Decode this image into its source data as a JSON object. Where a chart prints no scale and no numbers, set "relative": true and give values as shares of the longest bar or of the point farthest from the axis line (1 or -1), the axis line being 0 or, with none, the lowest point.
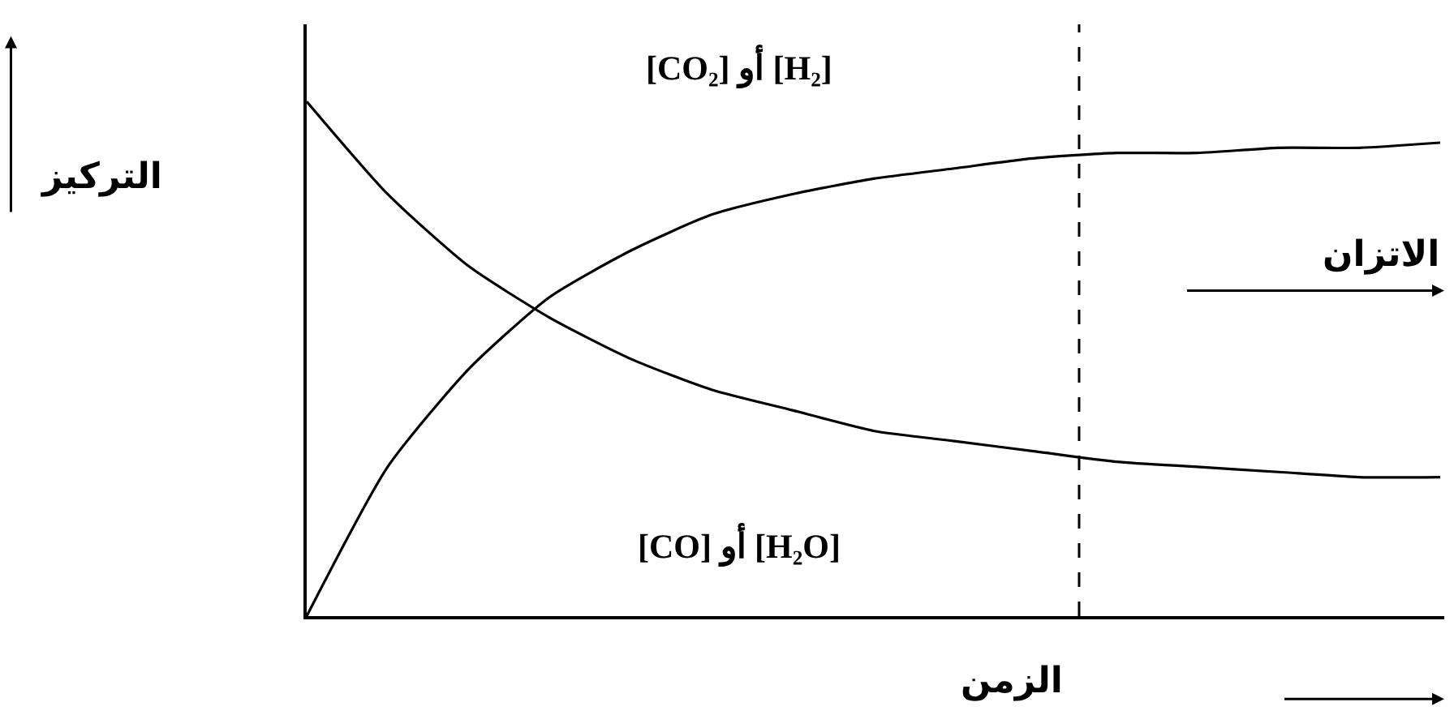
{
  "chart_data": {
    "type": "line",
    "relative": true,
    "xlabel": "الزمن",
    "ylabel": "التركيز",
    "categories": [
      null,
      null,
      null,
      null,
      null,
      null,
      null,
      null,
      null,
      null,
      null,
      null,
      null,
      null,
      null
    ],
    "series": [
      {
        "color": "#000000",
        "values": [
          1.0,
          0.82,
          0.68,
          0.58,
          0.5,
          0.44,
          0.4,
          0.36,
          0.34,
          0.32,
          0.3,
          0.29,
          0.28,
          0.27,
          0.27
        ]
      },
      {
        "color": "#000000",
        "values": [
          0,
          0.29,
          0.48,
          0.62,
          0.71,
          0.78,
          0.82,
          0.85,
          0.87,
          0.89,
          0.9,
          0.9,
          0.91,
          0.91,
          0.92
        ]
      }
    ],
    "annotations": [
      "[CO₂] أو [H₂]",
      "[CO] أو [H₂O]",
      "الاتزان"
    ],
    "marker": "none",
    "line_style": "solid"
  }
}
